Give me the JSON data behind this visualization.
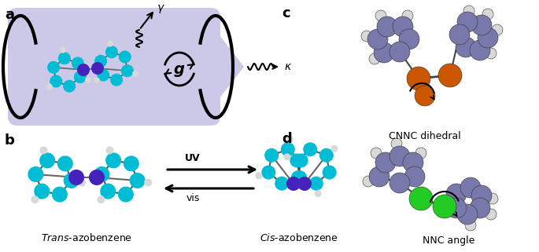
{
  "cavity_color": "#ccc8e8",
  "teal": "#00bcd4",
  "purple": "#4422bb",
  "orange": "#cc5500",
  "blue_gray": "#7878aa",
  "green": "#22cc22",
  "white_atom": "#d8d8d8",
  "black": "#000000",
  "bg_color": "#ffffff",
  "g_label": "g",
  "gamma_label": "γ",
  "kappa_label": "κ",
  "uv_label": "UV",
  "vis_label": "vis",
  "cnnc_label": "CNNC dihedral",
  "nnc_label": "NNC angle"
}
